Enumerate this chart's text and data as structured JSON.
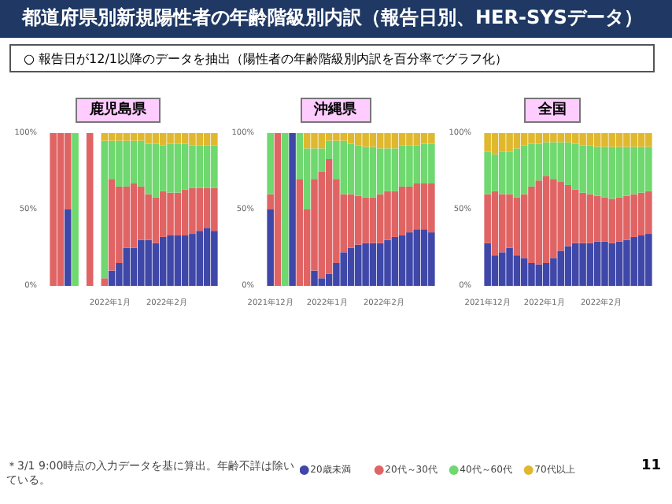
{
  "chart_data": [
    {
      "type": "bar",
      "stacked": true,
      "title": "鹿児島県",
      "annotations": [
        "都道府県別新規陽性者の年齢階級別内訳（報告日別、HER-SYSデータ）",
        "○ 報告日が12/1以降のデータを抽出（陽性者の年齢階級別内訳を百分率でグラフ化）",
        "＊3/1 9:00時点の入力データを基に算出。年齢不詳は除いている。",
        "11"
      ],
      "legend": "bottom",
      "x": [
        "2021-12-01",
        "2021-12-05",
        "2021-12-09",
        "2021-12-13",
        "2021-12-17",
        "2021-12-21",
        "2021-12-25",
        "2021-12-29",
        "2022-01-02",
        "2022-01-06",
        "2022-01-10",
        "2022-01-14",
        "2022-01-18",
        "2022-01-22",
        "2022-01-26",
        "2022-01-30",
        "2022-02-03",
        "2022-02-07",
        "2022-02-11",
        "2022-02-15",
        "2022-02-19",
        "2022-02-23",
        "2022-02-27"
      ],
      "xlim": [
        "2021-11-29",
        "2022-03-01"
      ],
      "xticks": [
        {
          "value": "2022-01-01",
          "label": "2022年1月"
        },
        {
          "value": "2022-02-01",
          "label": "2022年2月"
        }
      ],
      "ylim": [
        0,
        100
      ],
      "yticks": [
        {
          "value": 0,
          "label": "0%"
        },
        {
          "value": 50,
          "label": "50%"
        },
        {
          "value": 100,
          "label": "100%"
        }
      ],
      "series": [
        {
          "name": "20歳未満",
          "color": "#3f48a8",
          "values": [
            0,
            0,
            50,
            0,
            null,
            0,
            null,
            0,
            10,
            15,
            25,
            25,
            30,
            30,
            28,
            32,
            33,
            33,
            33,
            34,
            36,
            38,
            36
          ]
        },
        {
          "name": "20代～30代",
          "color": "#e06464",
          "values": [
            100,
            100,
            50,
            0,
            null,
            100,
            null,
            5,
            60,
            50,
            40,
            42,
            35,
            30,
            30,
            30,
            28,
            28,
            30,
            30,
            28,
            26,
            28
          ]
        },
        {
          "name": "40代～60代",
          "color": "#6fd86f",
          "values": [
            0,
            0,
            0,
            100,
            null,
            0,
            null,
            90,
            25,
            30,
            30,
            28,
            30,
            33,
            35,
            30,
            32,
            32,
            30,
            28,
            28,
            28,
            28
          ]
        },
        {
          "name": "70代以上",
          "color": "#e0b830",
          "values": [
            0,
            0,
            0,
            0,
            null,
            0,
            null,
            5,
            5,
            5,
            5,
            5,
            5,
            7,
            7,
            8,
            7,
            7,
            7,
            8,
            8,
            8,
            8
          ]
        }
      ]
    },
    {
      "type": "bar",
      "stacked": true,
      "title": "沖縄県",
      "x": [
        "2021-12-01",
        "2021-12-05",
        "2021-12-09",
        "2021-12-13",
        "2021-12-17",
        "2021-12-21",
        "2021-12-25",
        "2021-12-29",
        "2022-01-02",
        "2022-01-06",
        "2022-01-10",
        "2022-01-14",
        "2022-01-18",
        "2022-01-22",
        "2022-01-26",
        "2022-01-30",
        "2022-02-03",
        "2022-02-07",
        "2022-02-11",
        "2022-02-15",
        "2022-02-19",
        "2022-02-23",
        "2022-02-27"
      ],
      "xlim": [
        "2021-11-29",
        "2022-03-01"
      ],
      "xticks": [
        {
          "value": "2021-12-01",
          "label": "2021年12月"
        },
        {
          "value": "2022-01-01",
          "label": "2022年1月"
        },
        {
          "value": "2022-02-01",
          "label": "2022年2月"
        }
      ],
      "ylim": [
        0,
        100
      ],
      "yticks": [
        {
          "value": 0,
          "label": "0%"
        },
        {
          "value": 50,
          "label": "50%"
        },
        {
          "value": 100,
          "label": "100%"
        }
      ],
      "series": [
        {
          "color": "#3f48a8",
          "values": [
            50,
            0,
            0,
            100,
            0,
            0,
            10,
            5,
            8,
            15,
            22,
            25,
            27,
            28,
            28,
            28,
            30,
            32,
            33,
            35,
            37,
            37,
            35
          ]
        },
        {
          "color": "#e06464",
          "values": [
            10,
            100,
            0,
            0,
            70,
            50,
            60,
            70,
            75,
            55,
            38,
            35,
            32,
            30,
            30,
            32,
            32,
            30,
            32,
            30,
            30,
            30,
            32
          ]
        },
        {
          "color": "#6fd86f",
          "values": [
            40,
            0,
            100,
            0,
            30,
            40,
            20,
            15,
            12,
            25,
            35,
            33,
            33,
            33,
            33,
            30,
            28,
            28,
            27,
            27,
            25,
            26,
            26
          ]
        },
        {
          "color": "#e0b830",
          "values": [
            0,
            0,
            0,
            0,
            0,
            10,
            10,
            10,
            5,
            5,
            5,
            7,
            8,
            9,
            9,
            10,
            10,
            10,
            8,
            8,
            8,
            7,
            7
          ]
        }
      ]
    },
    {
      "type": "bar",
      "stacked": true,
      "title": "全国",
      "x": [
        "2021-12-01",
        "2021-12-05",
        "2021-12-09",
        "2021-12-13",
        "2021-12-17",
        "2021-12-21",
        "2021-12-25",
        "2021-12-29",
        "2022-01-02",
        "2022-01-06",
        "2022-01-10",
        "2022-01-14",
        "2022-01-18",
        "2022-01-22",
        "2022-01-26",
        "2022-01-30",
        "2022-02-03",
        "2022-02-07",
        "2022-02-11",
        "2022-02-15",
        "2022-02-19",
        "2022-02-23",
        "2022-02-27"
      ],
      "xlim": [
        "2021-11-29",
        "2022-03-01"
      ],
      "xticks": [
        {
          "value": "2021-12-01",
          "label": "2021年12月"
        },
        {
          "value": "2022-01-01",
          "label": "2022年1月"
        },
        {
          "value": "2022-02-01",
          "label": "2022年2月"
        }
      ],
      "ylim": [
        0,
        100
      ],
      "yticks": [
        {
          "value": 0,
          "label": "0%"
        },
        {
          "value": 50,
          "label": "50%"
        },
        {
          "value": 100,
          "label": "100%"
        }
      ],
      "series": [
        {
          "color": "#3f48a8",
          "values": [
            28,
            20,
            22,
            25,
            20,
            18,
            15,
            14,
            15,
            18,
            23,
            26,
            28,
            28,
            28,
            29,
            29,
            28,
            29,
            30,
            32,
            33,
            34
          ]
        },
        {
          "color": "#e06464",
          "values": [
            32,
            42,
            38,
            35,
            38,
            42,
            50,
            55,
            57,
            52,
            45,
            40,
            35,
            33,
            32,
            30,
            29,
            29,
            29,
            29,
            28,
            28,
            28
          ]
        },
        {
          "color": "#6fd86f",
          "values": [
            28,
            24,
            28,
            28,
            32,
            32,
            28,
            24,
            22,
            24,
            26,
            28,
            30,
            31,
            32,
            32,
            33,
            34,
            33,
            32,
            31,
            30,
            29
          ]
        },
        {
          "color": "#e0b830",
          "values": [
            12,
            14,
            12,
            12,
            10,
            8,
            7,
            7,
            6,
            6,
            6,
            6,
            7,
            8,
            8,
            9,
            9,
            9,
            9,
            9,
            9,
            9,
            9
          ]
        }
      ]
    }
  ]
}
